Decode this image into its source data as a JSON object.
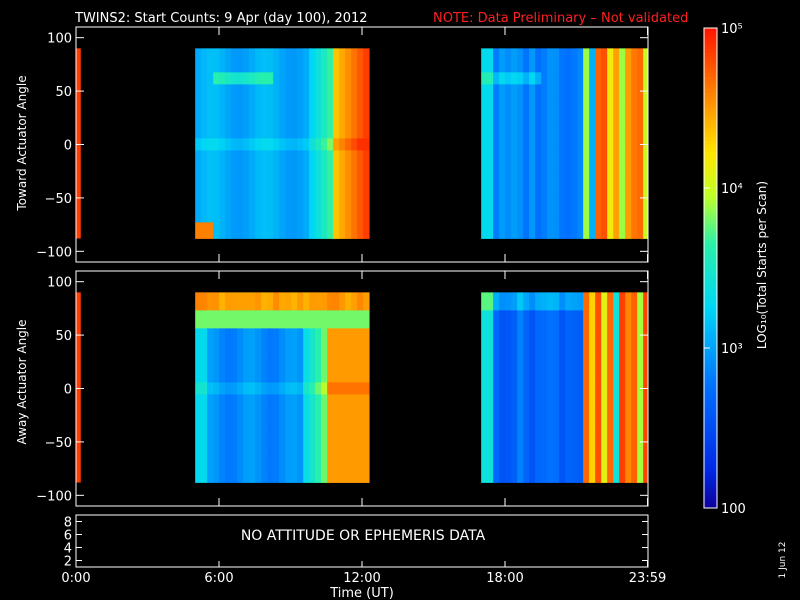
{
  "chart_data": {
    "type": "heatmap",
    "title": "TWINS2: Start Counts:  9 Apr (day 100), 2012",
    "note": "NOTE: Data Preliminary – Not validated",
    "xlabel": "Time (UT)",
    "xlim": [
      0,
      24
    ],
    "x_ticks": [
      {
        "value": 0,
        "label": "0:00"
      },
      {
        "value": 6,
        "label": "6:00"
      },
      {
        "value": 12,
        "label": "12:00"
      },
      {
        "value": 18,
        "label": "18:00"
      },
      {
        "value": 23.98,
        "label": "23:59"
      }
    ],
    "colorbar": {
      "label": "LOG₁₀(Total Starts per Scan)",
      "scale": "log",
      "range": [
        100,
        100000
      ],
      "ticks": [
        {
          "value": 100,
          "label": "100"
        },
        {
          "value": 1000,
          "label": "10³"
        },
        {
          "value": 10000,
          "label": "10⁴"
        },
        {
          "value": 100000,
          "label": "10⁵"
        }
      ]
    },
    "panels": [
      {
        "ylabel": "Toward Actuator Angle",
        "ylim": [
          -110,
          110
        ],
        "y_ticks": [
          100,
          50,
          0,
          -50,
          -100
        ],
        "data_ylim": [
          -88,
          90
        ],
        "segments": [
          {
            "start": 0.0,
            "end": 0.2,
            "log_counts": 4.85
          },
          {
            "start": 5.0,
            "end": 12.3,
            "profile": "toward_pass1"
          },
          {
            "start": 17.0,
            "end": 24.0,
            "profile": "toward_pass2"
          }
        ]
      },
      {
        "ylabel": "Away Actuator Angle",
        "ylim": [
          -110,
          110
        ],
        "y_ticks": [
          100,
          50,
          0,
          -50,
          -100
        ],
        "data_ylim": [
          -88,
          90
        ],
        "segments": [
          {
            "start": 0.0,
            "end": 0.2,
            "log_counts": 4.85
          },
          {
            "start": 5.0,
            "end": 12.3,
            "profile": "away_pass1"
          },
          {
            "start": 17.0,
            "end": 24.0,
            "profile": "away_pass2"
          }
        ]
      }
    ],
    "ephemeris_panel": {
      "y_ticks": [
        8,
        6,
        4,
        2
      ],
      "ylim": [
        1,
        9
      ],
      "message": "NO ATTITUDE OR EPHEMERIS DATA"
    }
  },
  "stamp": "1 Jun 12"
}
